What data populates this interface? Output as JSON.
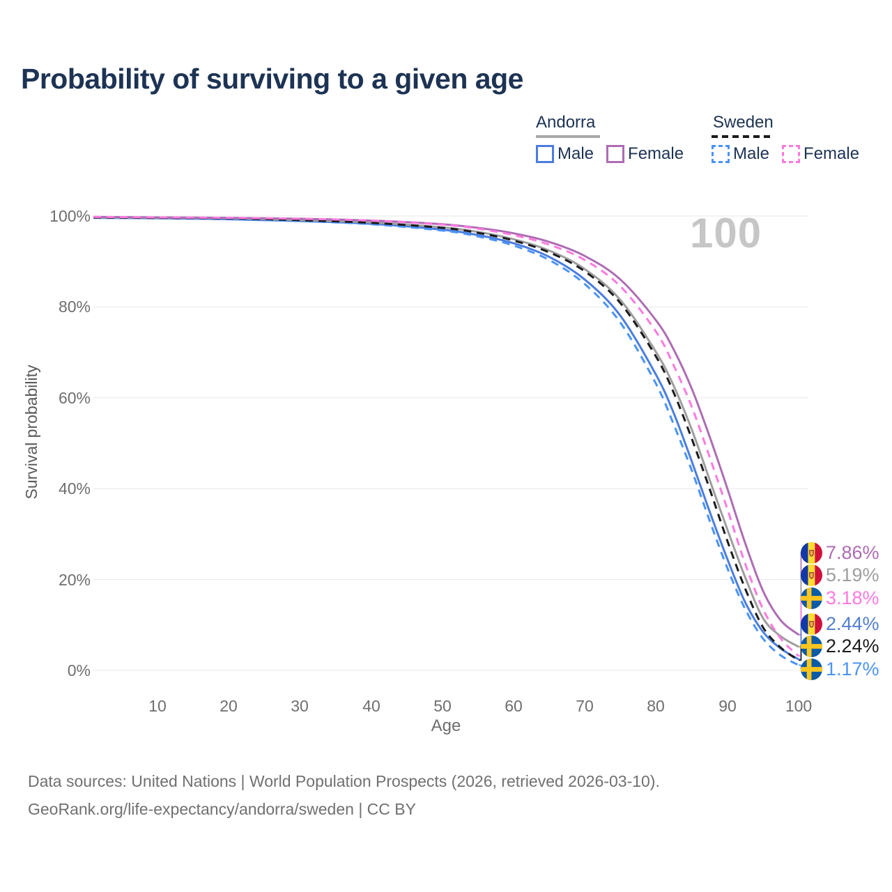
{
  "title": "Probability of surviving to a given age",
  "watermark": {
    "text": "100"
  },
  "legend": {
    "groups": [
      {
        "country": "Andorra",
        "line_style": "solid",
        "line_color": "#a9a9a9",
        "items": [
          {
            "label": "Male",
            "color": "#4a7de0"
          },
          {
            "label": "Female",
            "color": "#ae6cb4"
          }
        ]
      },
      {
        "country": "Sweden",
        "line_style": "dashed",
        "line_color": "#1b1b1b",
        "items": [
          {
            "label": "Male",
            "color": "#4b93f6"
          },
          {
            "label": "Female",
            "color": "#ff7ae0"
          }
        ]
      }
    ]
  },
  "axis": {
    "xlabel": "Age",
    "ylabel": "Survival probability",
    "x_ticks": [
      "10",
      "20",
      "30",
      "40",
      "50",
      "60",
      "70",
      "80",
      "90",
      "100"
    ],
    "y_ticks": [
      "100%",
      "80%",
      "60%",
      "40%",
      "20%",
      "0%"
    ]
  },
  "end_labels": [
    {
      "value": "7.86%",
      "series": "Andorra Female",
      "flag": "andorra",
      "color": "#ae6cb4"
    },
    {
      "value": "5.19%",
      "series": "Andorra Total",
      "flag": "andorra",
      "color": "#9e9e9e"
    },
    {
      "value": "3.18%",
      "series": "Sweden Female",
      "flag": "sweden",
      "color": "#ff7ae0"
    },
    {
      "value": "2.44%",
      "series": "Andorra Male",
      "flag": "andorra",
      "color": "#527fd0"
    },
    {
      "value": "2.24%",
      "series": "Sweden Total",
      "flag": "sweden",
      "color": "#1b1b1b"
    },
    {
      "value": "1.17%",
      "series": "Sweden Male",
      "flag": "sweden",
      "color": "#4b93f6"
    }
  ],
  "footer": {
    "line1": "Data sources: United Nations | World Population Prospects (2026, retrieved 2026-03-10).",
    "line2": "GeoRank.org/life-expectancy/andorra/sweden | CC BY"
  },
  "chart_data": {
    "type": "line",
    "title": "Probability of surviving to a given age",
    "xlabel": "Age",
    "ylabel": "Survival probability",
    "x_domain": [
      1,
      100
    ],
    "y_domain_pct": [
      0,
      100
    ],
    "y_grid_pct": [
      0,
      20,
      40,
      60,
      80,
      100
    ],
    "grid": "horizontal",
    "legend_position": "top-right",
    "ages": [
      1,
      10,
      20,
      30,
      40,
      50,
      55,
      60,
      65,
      70,
      75,
      80,
      82.5,
      85,
      87.5,
      90,
      92.5,
      95,
      97.5,
      100
    ],
    "series": [
      {
        "name": "Andorra Male",
        "country": "Andorra",
        "group": "Male",
        "style": "solid",
        "color": "#4a7de0",
        "values": [
          99.6,
          99.5,
          99.3,
          98.9,
          98.3,
          97.0,
          95.8,
          94.0,
          91.0,
          86.0,
          78.0,
          65.0,
          56.5,
          46.0,
          35.0,
          24.5,
          15.0,
          8.5,
          4.8,
          2.44
        ]
      },
      {
        "name": "Andorra Total",
        "country": "Andorra",
        "group": "Total",
        "style": "solid",
        "color": "#9e9e9e",
        "values": [
          99.7,
          99.6,
          99.5,
          99.1,
          98.6,
          97.5,
          96.5,
          94.9,
          92.4,
          88.3,
          81.5,
          70.0,
          62.5,
          53.0,
          42.0,
          31.0,
          20.5,
          11.5,
          7.5,
          5.19
        ]
      },
      {
        "name": "Andorra Female",
        "country": "Andorra",
        "group": "Female",
        "style": "solid",
        "color": "#ae6cb4",
        "values": [
          99.8,
          99.7,
          99.6,
          99.4,
          99.0,
          98.2,
          97.4,
          96.2,
          94.3,
          91.2,
          86.0,
          77.0,
          70.5,
          62.0,
          51.5,
          40.0,
          28.0,
          17.5,
          11.0,
          7.86
        ]
      },
      {
        "name": "Sweden Male",
        "country": "Sweden",
        "group": "Male",
        "style": "dashed",
        "color": "#4b93f6",
        "values": [
          99.7,
          99.6,
          99.4,
          98.9,
          98.2,
          96.8,
          95.5,
          93.5,
          90.3,
          85.0,
          76.5,
          63.0,
          54.0,
          44.0,
          33.0,
          22.5,
          13.5,
          7.0,
          3.3,
          1.17
        ]
      },
      {
        "name": "Sweden Total",
        "country": "Sweden",
        "group": "Total",
        "style": "dashed",
        "color": "#1b1b1b",
        "values": [
          99.7,
          99.6,
          99.5,
          99.1,
          98.5,
          97.4,
          96.3,
          94.6,
          92.0,
          87.8,
          80.8,
          69.0,
          61.0,
          51.0,
          40.0,
          28.5,
          18.0,
          9.5,
          5.0,
          2.24
        ]
      },
      {
        "name": "Sweden Female",
        "country": "Sweden",
        "group": "Female",
        "style": "dashed",
        "color": "#ff7ae0",
        "values": [
          99.8,
          99.7,
          99.6,
          99.4,
          99.0,
          98.1,
          97.2,
          95.8,
          93.7,
          90.3,
          84.5,
          74.5,
          67.0,
          58.0,
          47.0,
          35.5,
          23.5,
          13.5,
          7.0,
          3.18
        ]
      }
    ],
    "end_values_pct": {
      "Andorra Female": 7.86,
      "Andorra Total": 5.19,
      "Sweden Female": 3.18,
      "Andorra Male": 2.44,
      "Sweden Total": 2.24,
      "Sweden Male": 1.17
    }
  }
}
